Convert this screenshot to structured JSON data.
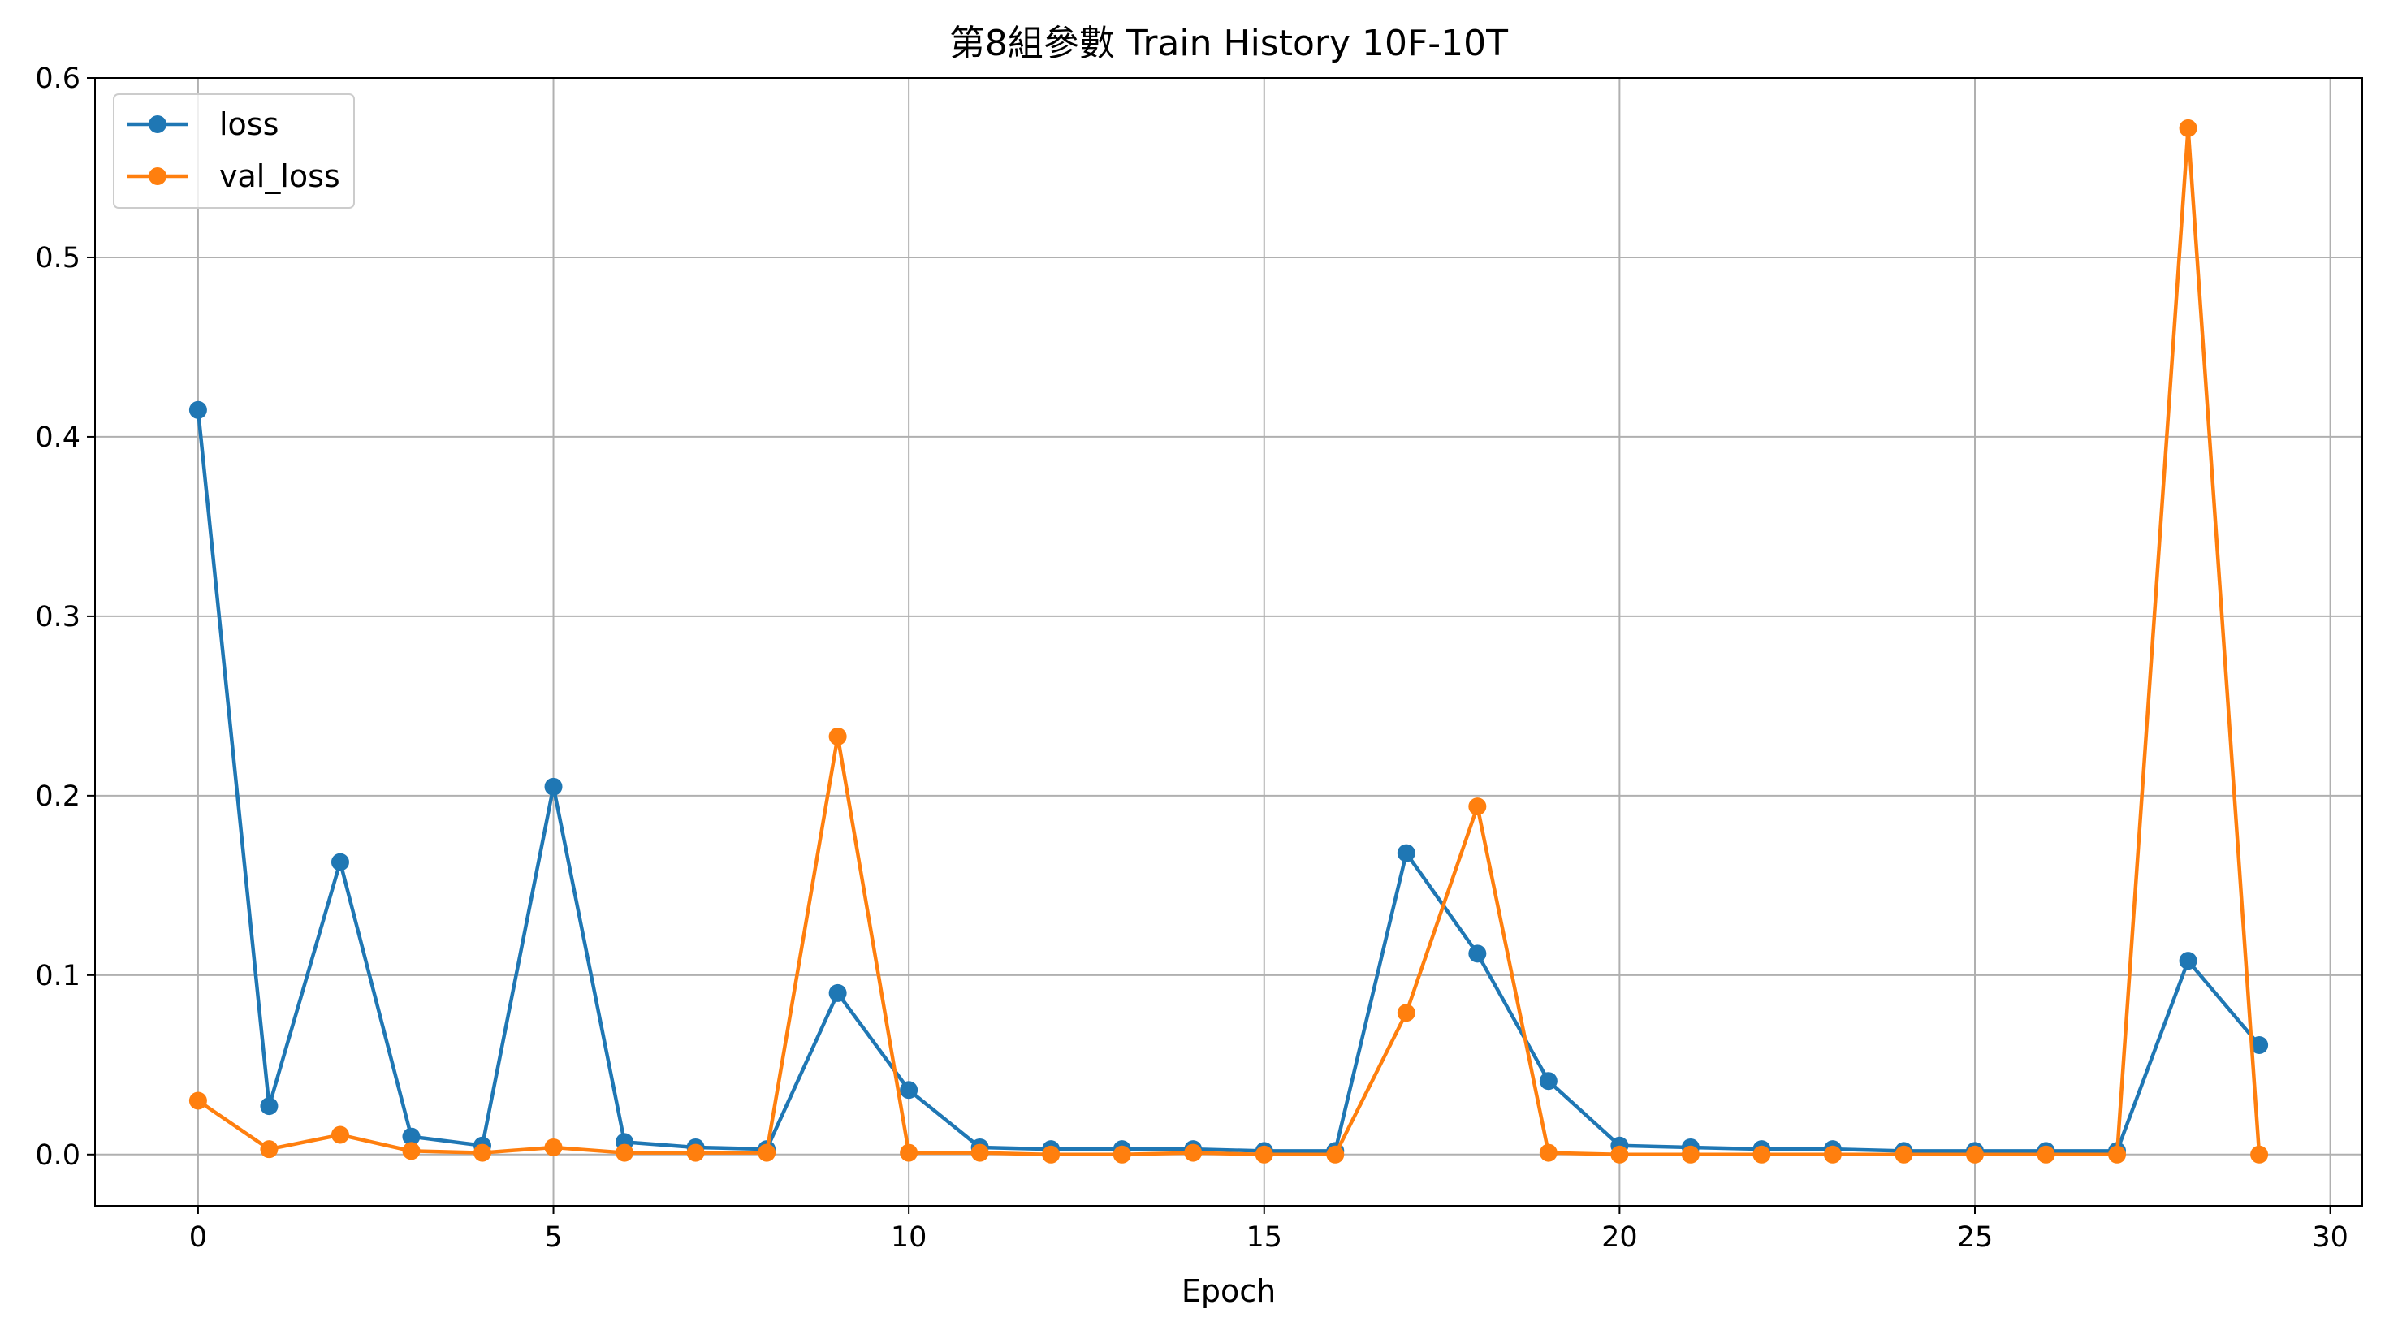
{
  "chart_data": {
    "type": "line",
    "title": "第8組參數 Train History 10F-10T",
    "xlabel": "Epoch",
    "ylabel": "",
    "xlim": [
      -1.45,
      30.45
    ],
    "ylim": [
      -0.0286,
      0.6
    ],
    "xticks": [
      0,
      5,
      10,
      15,
      20,
      25,
      30
    ],
    "xtick_labels": [
      "0",
      "5",
      "10",
      "15",
      "20",
      "25",
      "30"
    ],
    "yticks": [
      0.0,
      0.1,
      0.2,
      0.3,
      0.4,
      0.5,
      0.6
    ],
    "ytick_labels": [
      "0.0",
      "0.1",
      "0.2",
      "0.3",
      "0.4",
      "0.5",
      "0.6"
    ],
    "grid": true,
    "legend_position": "top-left",
    "x": [
      0,
      1,
      2,
      3,
      4,
      5,
      6,
      7,
      8,
      9,
      10,
      11,
      12,
      13,
      14,
      15,
      16,
      17,
      18,
      19,
      20,
      21,
      22,
      23,
      24,
      25,
      26,
      27,
      28,
      29
    ],
    "series": [
      {
        "name": "loss",
        "color": "#1f77b4",
        "values": [
          0.415,
          0.027,
          0.163,
          0.01,
          0.005,
          0.205,
          0.007,
          0.004,
          0.003,
          0.09,
          0.036,
          0.004,
          0.003,
          0.003,
          0.003,
          0.002,
          0.002,
          0.168,
          0.112,
          0.041,
          0.005,
          0.004,
          0.003,
          0.003,
          0.002,
          0.002,
          0.002,
          0.002,
          0.108,
          0.061
        ]
      },
      {
        "name": "val_loss",
        "color": "#ff7f0e",
        "values": [
          0.03,
          0.003,
          0.011,
          0.002,
          0.001,
          0.004,
          0.001,
          0.001,
          0.001,
          0.233,
          0.001,
          0.001,
          0.0,
          0.0,
          0.001,
          0.0,
          0.0,
          0.079,
          0.194,
          0.001,
          0.0,
          0.0,
          0.0,
          0.0,
          0.0,
          0.0,
          0.0,
          0.0,
          0.572,
          0.0
        ]
      }
    ]
  }
}
